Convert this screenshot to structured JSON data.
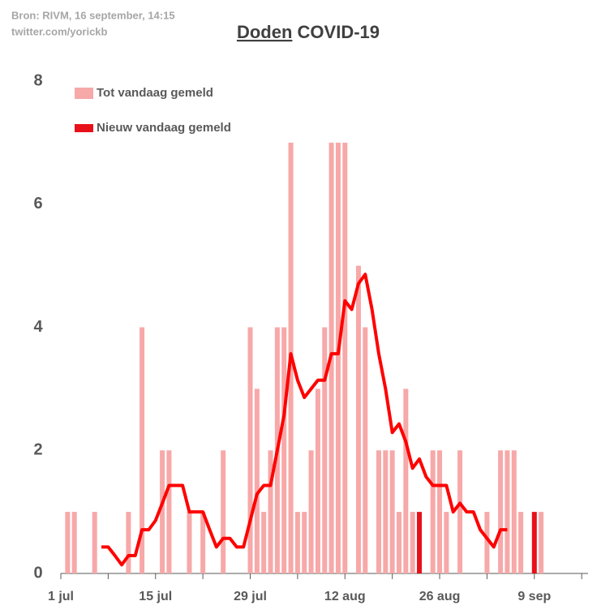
{
  "chart_data": {
    "type": "bar",
    "source": [
      "Bron: RIVM, 16 september, 14:15",
      "twitter.com/yorickb"
    ],
    "title": {
      "underlined": "Doden",
      "rest": "COVID-19"
    },
    "x": [
      0,
      1,
      2,
      3,
      4,
      5,
      6,
      7,
      8,
      9,
      10,
      11,
      12,
      13,
      14,
      15,
      16,
      17,
      18,
      19,
      20,
      21,
      22,
      23,
      24,
      25,
      26,
      27,
      28,
      29,
      30,
      31,
      32,
      33,
      34,
      35,
      36,
      37,
      38,
      39,
      40,
      41,
      42,
      43,
      44,
      45,
      46,
      47,
      48,
      49,
      50,
      51,
      52,
      53,
      54,
      55,
      56,
      57,
      58,
      59,
      60,
      61,
      62,
      63,
      64,
      65,
      66,
      67,
      68,
      69,
      70,
      71
    ],
    "series": [
      {
        "name": "Tot vandaag gemeld",
        "color": "#f7a8a8",
        "kind": "bar",
        "values": [
          0,
          1,
          1,
          0,
          0,
          1,
          0,
          0,
          0,
          0,
          1,
          0,
          4,
          0,
          0,
          2,
          2,
          0,
          0,
          1,
          0,
          1,
          0,
          0,
          2,
          0,
          0,
          0,
          4,
          3,
          1,
          2,
          4,
          4,
          7,
          1,
          1,
          2,
          3,
          4,
          7,
          7,
          7,
          0,
          5,
          4,
          0,
          2,
          2,
          2,
          1,
          3,
          1,
          0,
          0,
          2,
          2,
          1,
          0,
          2,
          0,
          0,
          0,
          1,
          0,
          2,
          2,
          2,
          1,
          0,
          0,
          1
        ]
      },
      {
        "name": "Nieuw vandaag gemeld",
        "color": "#e8101a",
        "kind": "bar",
        "values": [
          0,
          0,
          0,
          0,
          0,
          0,
          0,
          0,
          0,
          0,
          0,
          0,
          0,
          0,
          0,
          0,
          0,
          0,
          0,
          0,
          0,
          0,
          0,
          0,
          0,
          0,
          0,
          0,
          0,
          0,
          0,
          0,
          0,
          0,
          0,
          0,
          0,
          0,
          0,
          0,
          0,
          0,
          0,
          0,
          0,
          0,
          0,
          0,
          0,
          0,
          0,
          0,
          0,
          1,
          0,
          0,
          0,
          0,
          0,
          0,
          0,
          0,
          0,
          0,
          0,
          0,
          0,
          0,
          0,
          0,
          1,
          0
        ]
      },
      {
        "color": "#ff0000",
        "kind": "line",
        "values": [
          null,
          null,
          null,
          null,
          null,
          null,
          0.43,
          0.43,
          0.29,
          0.14,
          0.29,
          0.29,
          0.71,
          0.71,
          0.86,
          1.14,
          1.43,
          1.43,
          1.43,
          1.0,
          1.0,
          1.0,
          0.71,
          0.43,
          0.57,
          0.57,
          0.43,
          0.43,
          0.86,
          1.29,
          1.43,
          1.43,
          2.0,
          2.57,
          3.57,
          3.14,
          2.86,
          3.0,
          3.14,
          3.14,
          3.57,
          3.57,
          4.43,
          4.29,
          4.71,
          4.86,
          4.29,
          3.57,
          3.0,
          2.29,
          2.43,
          2.14,
          1.71,
          1.86,
          1.57,
          1.43,
          1.43,
          1.43,
          1.0,
          1.14,
          1.0,
          1.0,
          0.71,
          0.57,
          0.43,
          0.71,
          0.71,
          null,
          null,
          null,
          null,
          null
        ]
      }
    ],
    "xlim": [
      0,
      78
    ],
    "xticks": [
      {
        "value": 0,
        "label": "1 jul"
      },
      {
        "value": 14,
        "label": "15 jul"
      },
      {
        "value": 28,
        "label": "29 jul"
      },
      {
        "value": 42,
        "label": "12 aug"
      },
      {
        "value": 56,
        "label": "26 aug"
      },
      {
        "value": 70,
        "label": "9 sep"
      }
    ],
    "xminor_ticks": [
      7,
      21,
      35,
      49,
      63,
      77
    ],
    "ylim": [
      0,
      8
    ],
    "yticks": [
      0,
      2,
      4,
      6,
      8
    ],
    "legend": "top-left"
  }
}
